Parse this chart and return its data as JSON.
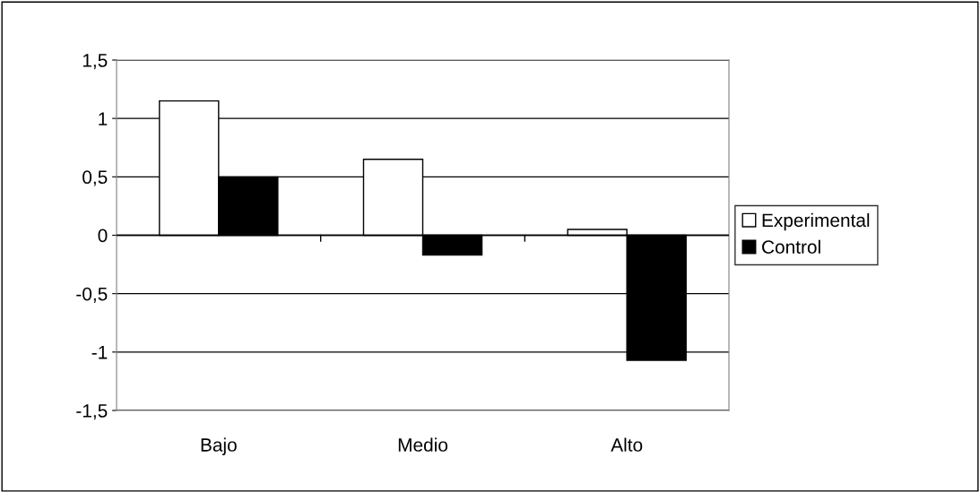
{
  "chart_data": {
    "type": "bar",
    "categories": [
      "Bajo",
      "Medio",
      "Alto"
    ],
    "series": [
      {
        "name": "Experimental",
        "color": "#ffffff",
        "values": [
          1.15,
          0.65,
          0.05
        ]
      },
      {
        "name": "Control",
        "color": "#000000",
        "values": [
          0.5,
          -0.17,
          -1.07
        ]
      }
    ],
    "ylim": [
      -1.5,
      1.5
    ],
    "yticks": [
      {
        "value": -1.5,
        "label": "-1,5"
      },
      {
        "value": -1,
        "label": "-1"
      },
      {
        "value": -0.5,
        "label": "-0,5"
      },
      0,
      {
        "value": 0.5,
        "label": "0,5"
      },
      1,
      {
        "value": 1.5,
        "label": "1,5"
      }
    ],
    "grid": "y",
    "legend": "right"
  }
}
